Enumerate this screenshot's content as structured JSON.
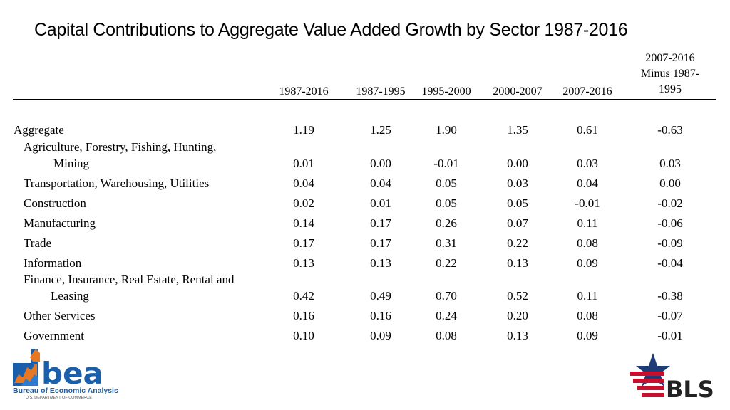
{
  "title": "Capital Contributions to Aggregate Value Added Growth by Sector 1987-2016",
  "columns": [
    "1987-2016",
    "1987-1995",
    "1995-2000",
    "2000-2007",
    "2007-2016"
  ],
  "last_column": {
    "line1": "2007-2016",
    "line2": "Minus 1987-",
    "line3": "1995"
  },
  "rows": [
    {
      "label": "Aggregate",
      "values": [
        "1.19",
        "1.25",
        "1.90",
        "1.35",
        "0.61",
        "-0.63"
      ]
    },
    {
      "label_line1": "Agriculture, Forestry, Fishing, Hunting,",
      "label_line2": "Mining",
      "values": [
        "0.01",
        "0.00",
        "-0.01",
        "0.00",
        "0.03",
        "0.03"
      ]
    },
    {
      "label": "Transportation, Warehousing, Utilities",
      "values": [
        "0.04",
        "0.04",
        "0.05",
        "0.03",
        "0.04",
        "0.00"
      ]
    },
    {
      "label": "Construction",
      "values": [
        "0.02",
        "0.01",
        "0.05",
        "0.05",
        "-0.01",
        "-0.02"
      ]
    },
    {
      "label": "Manufacturing",
      "values": [
        "0.14",
        "0.17",
        "0.26",
        "0.07",
        "0.11",
        "-0.06"
      ]
    },
    {
      "label": "Trade",
      "values": [
        "0.17",
        "0.17",
        "0.31",
        "0.22",
        "0.08",
        "-0.09"
      ]
    },
    {
      "label": "Information",
      "values": [
        "0.13",
        "0.13",
        "0.22",
        "0.13",
        "0.09",
        "-0.04"
      ]
    },
    {
      "label_line1": "Finance, Insurance, Real Estate, Rental and",
      "label_line2": "Leasing",
      "values": [
        "0.42",
        "0.49",
        "0.70",
        "0.52",
        "0.11",
        "-0.38"
      ]
    },
    {
      "label": "Other Services",
      "values": [
        "0.16",
        "0.16",
        "0.24",
        "0.20",
        "0.08",
        "-0.07"
      ]
    },
    {
      "label": "Government",
      "values": [
        "0.10",
        "0.09",
        "0.08",
        "0.13",
        "0.09",
        "-0.01"
      ]
    }
  ],
  "logos": {
    "bea": {
      "wordmark": "bea",
      "name": "Bureau of Economic Analysis",
      "dept": "U.S. DEPARTMENT OF COMMERCE",
      "blue": "#1b5faa",
      "orange": "#e87722"
    },
    "bls": {
      "wordmark": "BLS",
      "red": "#c8102e",
      "navy": "#1d3c78",
      "gray": "#222222"
    }
  }
}
